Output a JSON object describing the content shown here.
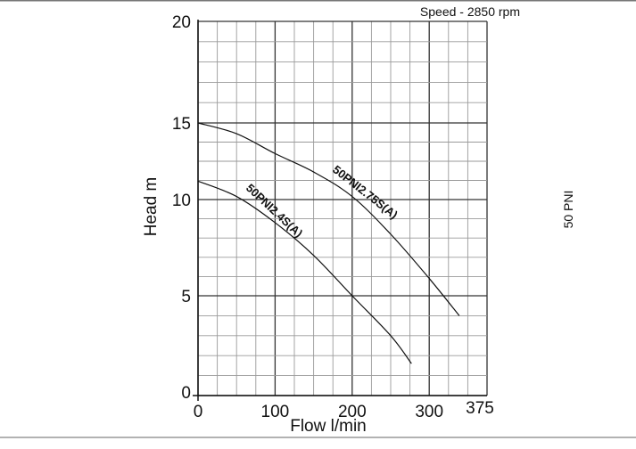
{
  "chart_data": {
    "type": "line",
    "title": "Speed - 2850 rpm",
    "side_label": "50 PNI",
    "xlabel": "Flow l/min",
    "ylabel": "Head m",
    "xlim": [
      0,
      375
    ],
    "ylim": [
      0,
      20
    ],
    "x_ticks": [
      0,
      100,
      200,
      300,
      375
    ],
    "x_tick_labels": [
      "0",
      "100",
      "200",
      "300",
      "375"
    ],
    "y_ticks": [
      0,
      5,
      10,
      15,
      20
    ],
    "y_tick_labels": [
      "0",
      "5",
      "10",
      "15",
      "20"
    ],
    "grid": true,
    "series": [
      {
        "name": "50PNI2.75S(A)",
        "x": [
          0,
          50,
          100,
          150,
          200,
          250,
          300,
          339
        ],
        "y": [
          15.0,
          14.3,
          13.0,
          11.8,
          10.2,
          8.2,
          5.9,
          4.0
        ]
      },
      {
        "name": "50PNI2.4S(A)",
        "x": [
          0,
          50,
          100,
          150,
          200,
          250,
          277
        ],
        "y": [
          11.2,
          10.2,
          8.8,
          7.1,
          5.0,
          3.0,
          1.6
        ]
      }
    ],
    "colors": {
      "line": "#111111",
      "grid": "#9a9a9a",
      "grid_major": "#333333"
    }
  }
}
